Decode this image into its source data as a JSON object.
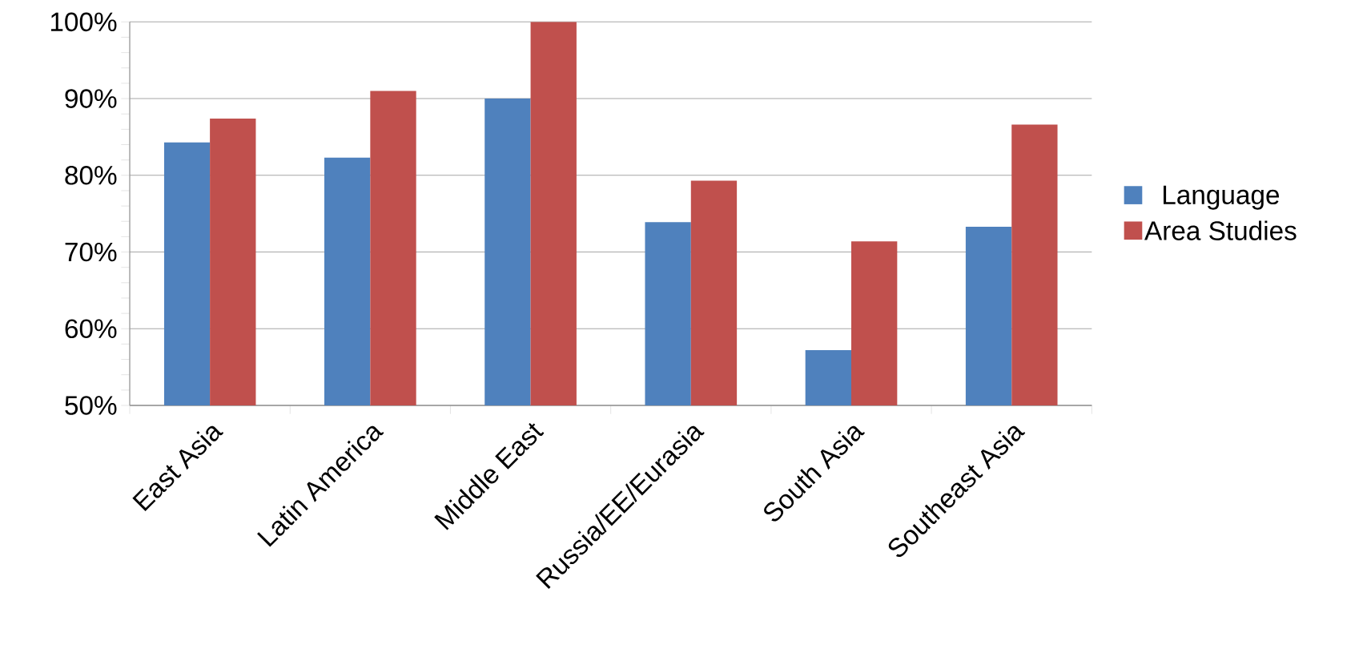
{
  "chart_data": {
    "type": "bar",
    "categories": [
      "East Asia",
      "Latin America",
      "Middle East",
      "Russia/EE/Eurasia",
      "South Asia",
      "Southeast Asia"
    ],
    "series": [
      {
        "name": "Language",
        "color": "#4f81bd",
        "values": [
          84.3,
          82.3,
          90,
          73.9,
          57.2,
          73.3
        ]
      },
      {
        "name": "Area Studies",
        "color": "#c0504d",
        "values": [
          87.4,
          91.0,
          100,
          79.3,
          71.4,
          86.6
        ]
      }
    ],
    "ylim": [
      50,
      100
    ],
    "yticks": [
      {
        "value": 50,
        "label": "50%"
      },
      {
        "value": 60,
        "label": "60%"
      },
      {
        "value": 70,
        "label": "70%"
      },
      {
        "value": 80,
        "label": "80%"
      },
      {
        "value": 90,
        "label": "90%"
      },
      {
        "value": 100,
        "label": "100%"
      }
    ],
    "grid": "y",
    "legend": "right"
  }
}
